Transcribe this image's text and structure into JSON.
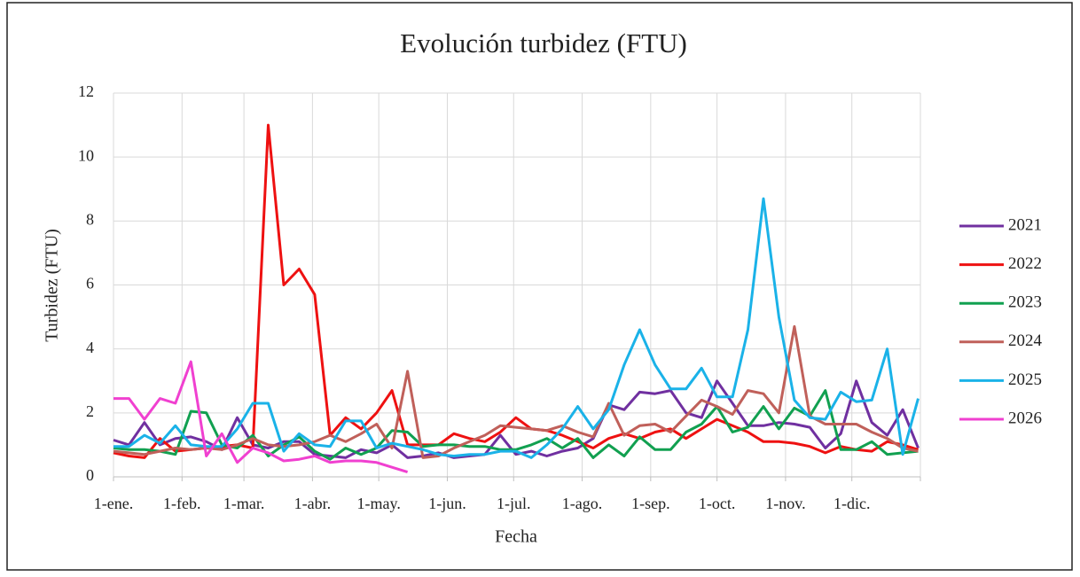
{
  "chart_data": {
    "type": "line",
    "title": "Evolución turbidez (FTU)",
    "x_label": "Fecha",
    "y_label": "Turbidez (FTU)",
    "xlim": [
      0,
      365
    ],
    "xticks": [
      {
        "value": 0,
        "label": "1-ene."
      },
      {
        "value": 31,
        "label": "1-feb."
      },
      {
        "value": 59,
        "label": "1-mar."
      },
      {
        "value": 90,
        "label": "1-abr."
      },
      {
        "value": 120,
        "label": "1-may."
      },
      {
        "value": 151,
        "label": "1-jun."
      },
      {
        "value": 181,
        "label": "1-jul."
      },
      {
        "value": 212,
        "label": "1-ago."
      },
      {
        "value": 243,
        "label": "1-sep."
      },
      {
        "value": 273,
        "label": "1-oct."
      },
      {
        "value": 304,
        "label": "1-nov."
      },
      {
        "value": 334,
        "label": "1-dic."
      },
      365
    ],
    "ylim": [
      0,
      12
    ],
    "yticks": [
      0,
      2,
      4,
      6,
      8,
      10,
      12
    ],
    "grid": true,
    "legend": "right",
    "x": [
      0,
      7,
      14,
      21,
      28,
      35,
      42,
      49,
      56,
      63,
      70,
      77,
      84,
      91,
      98,
      105,
      112,
      119,
      126,
      133,
      140,
      147,
      154,
      161,
      168,
      175,
      182,
      189,
      196,
      203,
      210,
      217,
      224,
      231,
      238,
      245,
      252,
      259,
      266,
      273,
      280,
      287,
      294,
      301,
      308,
      315,
      322,
      329,
      336,
      343,
      350,
      357,
      364
    ],
    "series": [
      {
        "name": "2021",
        "color": "#7030a0",
        "values": [
          1.15,
          1.0,
          1.7,
          1.0,
          1.2,
          1.25,
          1.1,
          0.85,
          1.85,
          1.0,
          0.9,
          1.1,
          1.1,
          0.7,
          0.65,
          0.6,
          0.85,
          0.75,
          1.0,
          0.6,
          0.65,
          0.75,
          0.6,
          0.65,
          0.7,
          1.3,
          0.7,
          0.8,
          0.65,
          0.8,
          0.9,
          1.2,
          2.25,
          2.1,
          2.65,
          2.6,
          2.7,
          2.0,
          1.85,
          3.0,
          2.3,
          1.6,
          1.6,
          1.7,
          1.65,
          1.55,
          0.9,
          1.35,
          3.0,
          1.7,
          1.3,
          2.1,
          0.9
        ]
      },
      {
        "name": "2022",
        "color": "#ee1111",
        "values": [
          0.75,
          0.65,
          0.6,
          1.2,
          0.8,
          0.85,
          0.9,
          0.95,
          1.0,
          0.9,
          11.0,
          6.0,
          6.5,
          5.7,
          1.3,
          1.85,
          1.5,
          2.0,
          2.7,
          1.0,
          1.0,
          1.0,
          1.35,
          1.2,
          1.1,
          1.4,
          1.85,
          1.5,
          1.45,
          1.3,
          1.1,
          0.9,
          1.2,
          1.35,
          1.2,
          1.4,
          1.5,
          1.2,
          1.5,
          1.8,
          1.6,
          1.4,
          1.1,
          1.1,
          1.05,
          0.95,
          0.75,
          0.95,
          0.85,
          0.8,
          1.1,
          1.0,
          0.85
        ]
      },
      {
        "name": "2023",
        "color": "#11a050",
        "values": [
          0.9,
          0.85,
          0.85,
          0.8,
          0.7,
          2.05,
          2.0,
          1.0,
          0.9,
          1.3,
          0.65,
          1.0,
          1.25,
          0.8,
          0.55,
          0.9,
          0.7,
          0.9,
          1.45,
          1.4,
          0.95,
          1.0,
          1.0,
          0.95,
          0.95,
          0.85,
          0.85,
          1.0,
          1.2,
          0.9,
          1.2,
          0.6,
          1.0,
          0.65,
          1.25,
          0.85,
          0.85,
          1.4,
          1.65,
          2.2,
          1.4,
          1.55,
          2.2,
          1.5,
          2.15,
          1.9,
          2.7,
          0.85,
          0.85,
          1.1,
          0.7,
          0.75,
          0.8
        ]
      },
      {
        "name": "2024",
        "color": "#c0605a",
        "values": [
          0.8,
          0.75,
          0.7,
          0.8,
          0.9,
          0.85,
          0.9,
          0.85,
          1.0,
          1.2,
          1.0,
          0.95,
          1.0,
          1.1,
          1.3,
          1.1,
          1.35,
          1.65,
          0.9,
          3.3,
          0.6,
          0.65,
          0.9,
          1.1,
          1.3,
          1.6,
          1.55,
          1.5,
          1.45,
          1.6,
          1.4,
          1.25,
          2.3,
          1.3,
          1.6,
          1.65,
          1.4,
          1.9,
          2.4,
          2.2,
          1.95,
          2.7,
          2.6,
          2.0,
          4.7,
          1.9,
          1.65,
          1.65,
          1.65,
          1.4,
          1.2,
          0.9,
          0.8
        ]
      },
      {
        "name": "2025",
        "color": "#1ab2e8",
        "values": [
          0.95,
          0.95,
          1.3,
          1.05,
          1.6,
          1.0,
          0.95,
          0.95,
          1.5,
          2.3,
          2.3,
          0.8,
          1.35,
          1.0,
          0.95,
          1.75,
          1.75,
          0.9,
          1.05,
          0.95,
          0.85,
          0.7,
          0.65,
          0.7,
          0.7,
          0.8,
          0.8,
          0.6,
          1.0,
          1.5,
          2.2,
          1.5,
          2.1,
          3.5,
          4.6,
          3.5,
          2.75,
          2.75,
          3.4,
          2.5,
          2.5,
          4.6,
          8.7,
          5.0,
          2.4,
          1.85,
          1.8,
          2.65,
          2.35,
          2.4,
          4.0,
          0.7,
          2.45
        ]
      },
      {
        "name": "2026",
        "color": "#f040d0",
        "values": [
          2.45,
          2.45,
          1.8,
          2.45,
          2.3,
          3.6,
          0.65,
          1.35,
          0.45,
          0.9,
          0.75,
          0.5,
          0.55,
          0.65,
          0.45,
          0.5,
          0.5,
          0.45,
          0.3,
          0.15,
          null,
          null,
          null,
          null,
          null,
          null,
          null,
          null,
          null,
          null,
          null,
          null,
          null,
          null,
          null,
          null,
          null,
          null,
          null,
          null,
          null,
          null,
          null,
          null,
          null,
          null,
          null,
          null,
          null,
          null,
          null,
          null,
          null
        ]
      }
    ]
  }
}
